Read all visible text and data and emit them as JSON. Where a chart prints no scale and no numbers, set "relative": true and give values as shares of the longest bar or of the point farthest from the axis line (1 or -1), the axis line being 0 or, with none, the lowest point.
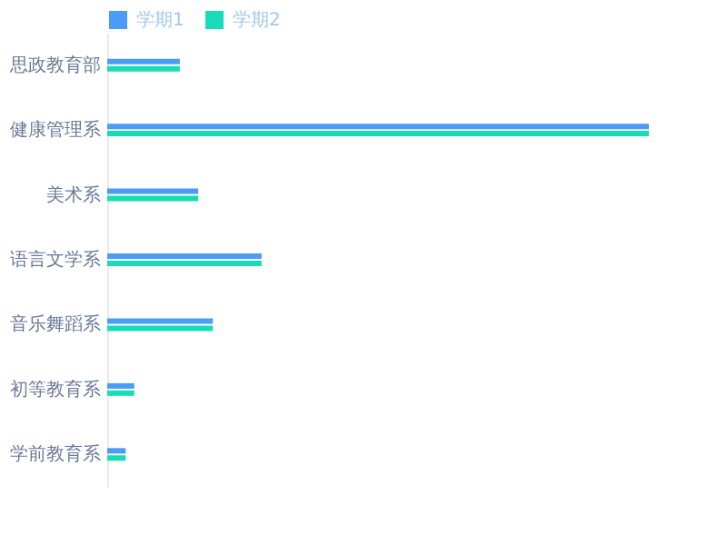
{
  "chart_data": {
    "type": "bar",
    "orientation": "horizontal",
    "relative": true,
    "legend": "top left",
    "categories": [
      "思政教育部",
      "健康管理系",
      "美术系",
      "语言文学系",
      "音乐舞蹈系",
      "初等教育系",
      "学前教育系"
    ],
    "series": [
      {
        "name": "学期1",
        "color": "#4a9cf6",
        "values": [
          0.134,
          1,
          0.168,
          0.285,
          0.195,
          0.05,
          0.034
        ]
      },
      {
        "name": "学期2",
        "color": "#17dcb5",
        "values": [
          0.134,
          1,
          0.168,
          0.285,
          0.195,
          0.05,
          0.034
        ]
      }
    ]
  }
}
